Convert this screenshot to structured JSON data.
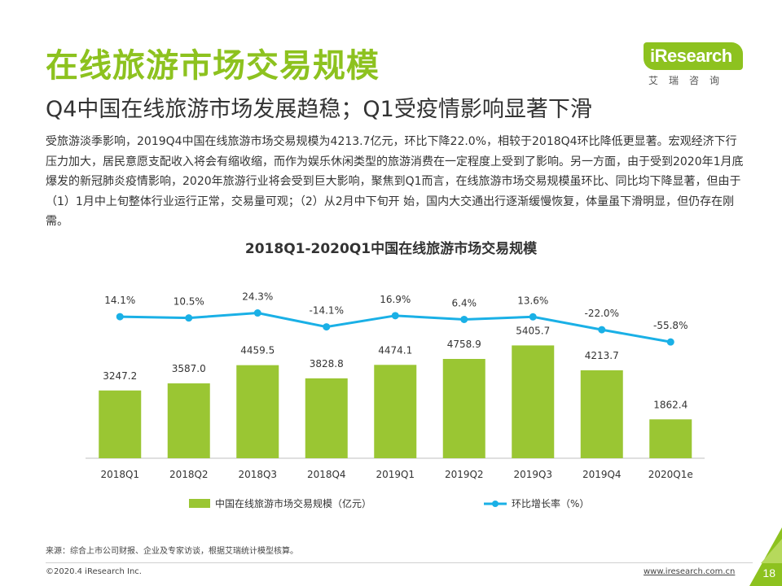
{
  "header": {
    "title": "在线旅游市场交易规模",
    "subtitle": "Q4中国在线旅游市场发展趋稳；Q1受疫情影响显著下滑"
  },
  "logo": {
    "brand": "iResearch",
    "tagline": "艾瑞咨询"
  },
  "paragraph": "受旅游淡季影响，2019Q4中国在线旅游市场交易规模为4213.7亿元，环比下降22.0%，相较于2018Q4环比降低更显著。宏观经济下行压力加大，居民意愿支配收入将会有缩收缩，而作为娱乐休闲类型的旅游消费在一定程度上受到了影响。另一方面，由于受到2020年1月底爆发的新冠肺炎疫情影响，2020年旅游行业将会受到巨大影响，聚焦到Q1而言，在线旅游市场交易规模虽环比、同比均下降显著，但由于（1）1月中上旬整体行业运行正常，交易量可观；（2）从2月中下旬开 始，国内大交通出行逐渐缓慢恢复，体量虽下滑明显，但仍存在刚需。",
  "chart_data": {
    "type": "bar",
    "title": "2018Q1-2020Q1中国在线旅游市场交易规模",
    "categories": [
      "2018Q1",
      "2018Q2",
      "2018Q3",
      "2018Q4",
      "2019Q1",
      "2019Q2",
      "2019Q3",
      "2019Q4",
      "2020Q1e"
    ],
    "series": [
      {
        "name": "中国在线旅游市场交易规模（亿元）",
        "kind": "bar",
        "color": "#9ac633",
        "values": [
          3247.2,
          3587.0,
          4459.5,
          3828.8,
          4474.1,
          4758.9,
          5405.7,
          4213.7,
          1862.4
        ],
        "labels": [
          "3247.2",
          "3587.0",
          "4459.5",
          "3828.8",
          "4474.1",
          "4758.9",
          "5405.7",
          "4213.7",
          "1862.4"
        ]
      },
      {
        "name": "环比增长率（%）",
        "kind": "line",
        "color": "#1ab0e6",
        "values": [
          14.1,
          10.5,
          24.3,
          -14.1,
          16.9,
          6.4,
          13.6,
          -22.0,
          -55.8
        ],
        "labels": [
          "14.1%",
          "10.5%",
          "24.3%",
          "-14.1%",
          "16.9%",
          "6.4%",
          "13.6%",
          "-22.0%",
          "-55.8%"
        ]
      }
    ],
    "bar_ylim": [
      0,
      5500
    ],
    "line_ylim": [
      -60,
      30
    ],
    "legend_position": "bottom",
    "grid": false
  },
  "footer": {
    "source": "来源：综合上市公司财报、企业及专家访谈，根据艾瑞统计模型核算。",
    "copyright": "©2020.4 iResearch Inc.",
    "website": "www.iresearch.com.cn",
    "page_number": "18"
  },
  "colors": {
    "accent": "#8dc21f",
    "bar": "#9ac633",
    "line": "#1ab0e6"
  }
}
